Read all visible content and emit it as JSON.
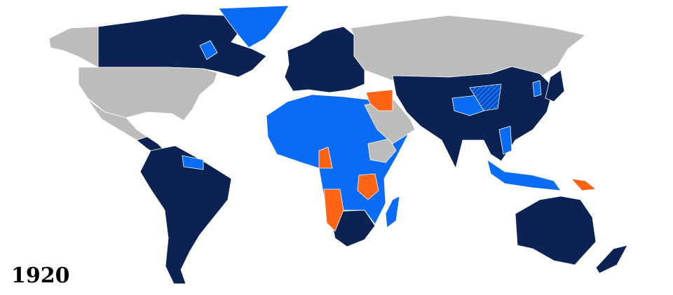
{
  "map": {
    "year_label": "1920",
    "colors": {
      "navy": "#0b2253",
      "blue": "#0a6cf5",
      "orange": "#ff6414",
      "gray": "#bcbcbc"
    },
    "regions": [
      {
        "name": "alaska",
        "color": "gray"
      },
      {
        "name": "canada",
        "color": "navy"
      },
      {
        "name": "greenland",
        "color": "blue"
      },
      {
        "name": "newfoundland",
        "color": "blue"
      },
      {
        "name": "usa",
        "color": "gray"
      },
      {
        "name": "mexico",
        "color": "gray"
      },
      {
        "name": "central-america",
        "color": "navy"
      },
      {
        "name": "south-america",
        "color": "navy"
      },
      {
        "name": "guianas",
        "color": "blue"
      },
      {
        "name": "europe",
        "color": "navy"
      },
      {
        "name": "russia",
        "color": "gray"
      },
      {
        "name": "africa-colonies",
        "color": "blue"
      },
      {
        "name": "ethiopia",
        "color": "gray"
      },
      {
        "name": "south-africa",
        "color": "navy"
      },
      {
        "name": "south-west-africa",
        "color": "orange"
      },
      {
        "name": "tanganyika",
        "color": "orange"
      },
      {
        "name": "cameroon",
        "color": "orange"
      },
      {
        "name": "madagascar",
        "color": "blue"
      },
      {
        "name": "arabia",
        "color": "gray"
      },
      {
        "name": "levant-mandates",
        "color": "orange"
      },
      {
        "name": "asia-members",
        "color": "navy"
      },
      {
        "name": "tibet",
        "color": "blue"
      },
      {
        "name": "mongolia",
        "color": "gray"
      },
      {
        "name": "japan",
        "color": "navy"
      },
      {
        "name": "korea",
        "color": "blue"
      },
      {
        "name": "indochina",
        "color": "blue"
      },
      {
        "name": "east-indies",
        "color": "blue"
      },
      {
        "name": "new-guinea",
        "color": "orange"
      },
      {
        "name": "australia",
        "color": "navy"
      },
      {
        "name": "new-zealand",
        "color": "navy"
      }
    ]
  }
}
